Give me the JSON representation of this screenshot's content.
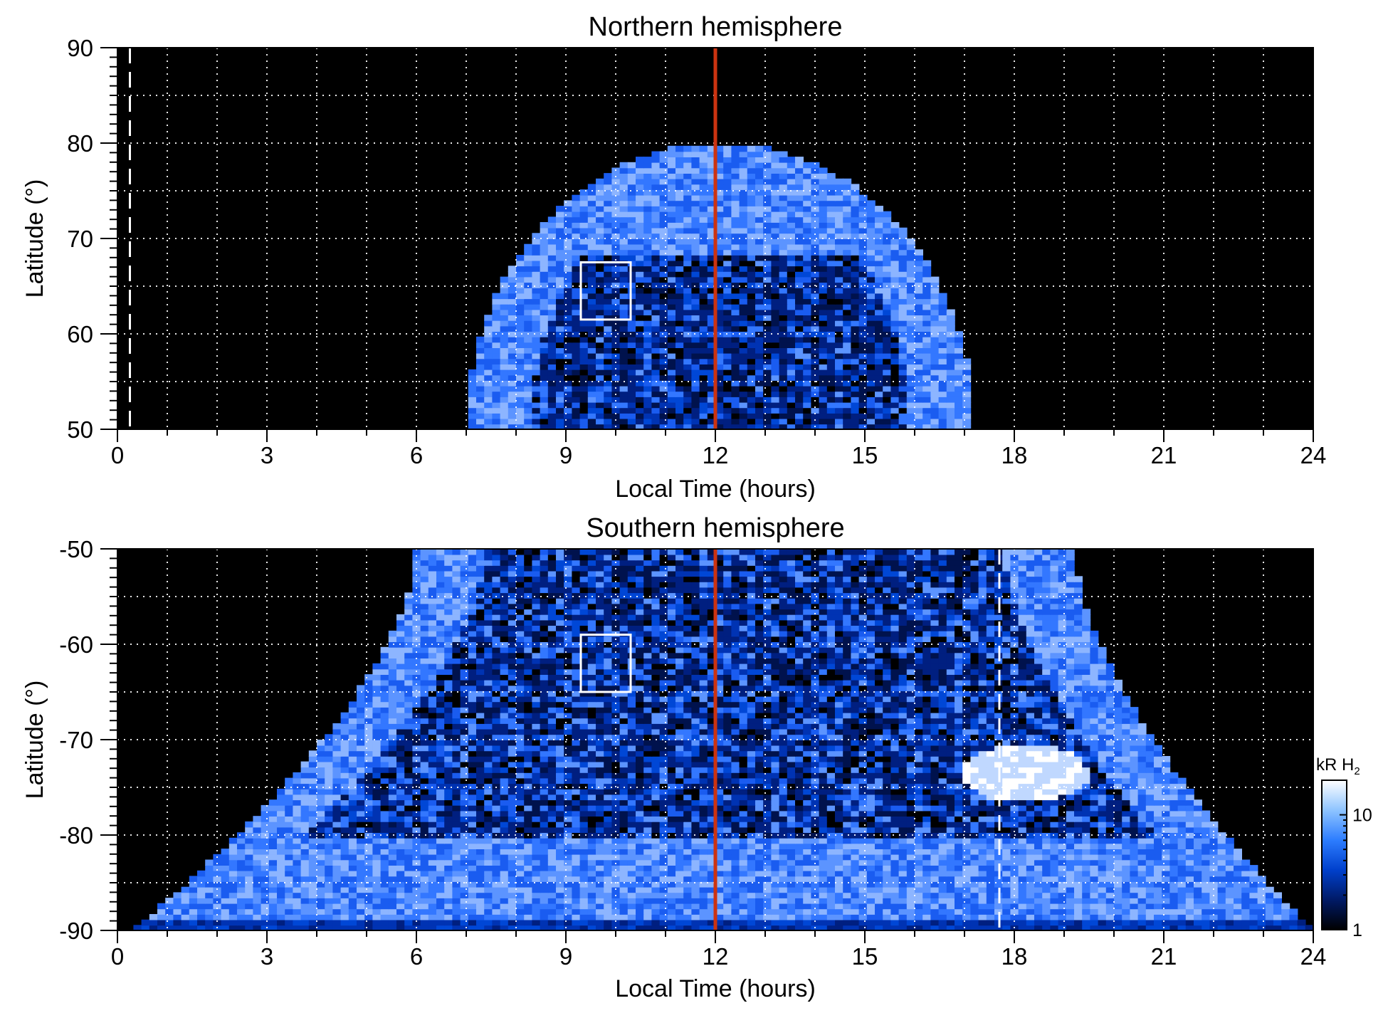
{
  "chart_data": [
    {
      "type": "heatmap",
      "title": "Northern hemisphere",
      "xlabel": "Local Time (hours)",
      "ylabel": "Latitude (°)",
      "xlim": [
        0,
        24
      ],
      "ylim": [
        50,
        90
      ],
      "xticks": [
        0,
        3,
        6,
        9,
        12,
        15,
        18,
        21,
        24
      ],
      "xtick_labels": [
        "0",
        "3",
        "6",
        "9",
        "12",
        "15",
        "18",
        "21",
        "24"
      ],
      "yticks": [
        50,
        60,
        70,
        80,
        90
      ],
      "ytick_labels": [
        "50",
        "60",
        "70",
        "80",
        "90"
      ],
      "grid": true,
      "colormap": "black-blue-white",
      "coverage": {
        "lt_min": 7.0,
        "lt_max": 17.2,
        "lat_max": 80
      },
      "oval": {
        "band_inner_lat": 68,
        "band_outer_lat": 80
      },
      "vertical_line_lt": 12,
      "vertical_line_color": "#cc3311",
      "dashed_line_lt": 0.25,
      "box": {
        "lt": [
          9.3,
          10.3
        ],
        "lat": [
          61.5,
          67.5
        ]
      }
    },
    {
      "type": "heatmap",
      "title": "Southern hemisphere",
      "xlabel": "Local Time (hours)",
      "ylabel": "Latitude (°)",
      "xlim": [
        0,
        24
      ],
      "ylim": [
        -90,
        -50
      ],
      "xticks": [
        0,
        3,
        6,
        9,
        12,
        15,
        18,
        21,
        24
      ],
      "xtick_labels": [
        "0",
        "3",
        "6",
        "9",
        "12",
        "15",
        "18",
        "21",
        "24"
      ],
      "yticks": [
        -90,
        -80,
        -70,
        -60,
        -50
      ],
      "ytick_labels": [
        "-90",
        "-80",
        "-70",
        "-60",
        "-50"
      ],
      "grid": true,
      "colormap": "black-blue-white",
      "coverage": {
        "lt_min": 0.3,
        "lt_max": 24
      },
      "bright_spot": {
        "lt": 18.2,
        "lat": -73.5
      },
      "vertical_line_lt": 12,
      "vertical_line_color": "#cc3311",
      "dashed_line_lt": 17.7,
      "box": {
        "lt": [
          9.3,
          10.3
        ],
        "lat": [
          -65,
          -59
        ]
      }
    }
  ],
  "colorbar": {
    "unit_main": "kR H",
    "unit_sub": "2",
    "scale": "log",
    "range": [
      1,
      20
    ],
    "ticks": [
      "1",
      "10"
    ],
    "colors": [
      "#000000",
      "#001a66",
      "#0040cc",
      "#2d7dff",
      "#8ec4ff",
      "#ffffff"
    ]
  }
}
